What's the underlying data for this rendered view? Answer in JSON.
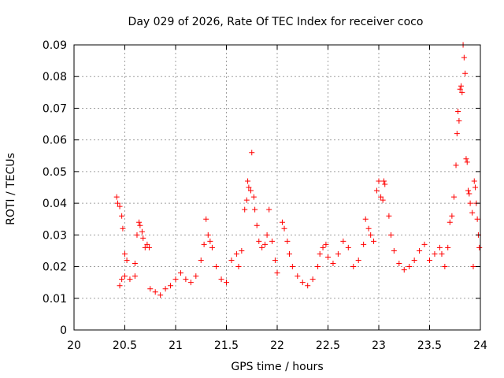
{
  "chart_data": {
    "type": "scatter",
    "title": "Day 029 of 2026, Rate Of TEC Index for receiver coco",
    "xlabel": "GPS time / hours",
    "ylabel": "ROTI / TECUs",
    "xlim": [
      20,
      24
    ],
    "ylim": [
      0,
      0.09
    ],
    "x_ticks": [
      20,
      20.5,
      21,
      21.5,
      22,
      22.5,
      23,
      23.5,
      24
    ],
    "x_tick_labels": [
      "20",
      "20.5",
      "21",
      "21.5",
      "22",
      "22.5",
      "23",
      "23.5",
      "24"
    ],
    "y_ticks": [
      0,
      0.01,
      0.02,
      0.03,
      0.04,
      0.05,
      0.06,
      0.07,
      0.08,
      0.09
    ],
    "y_tick_labels": [
      "0",
      "0.01",
      "0.02",
      "0.03",
      "0.04",
      "0.05",
      "0.06",
      "0.07",
      "0.08",
      "0.09"
    ],
    "grid": true,
    "marker": "+",
    "series": [
      {
        "name": "ROTI",
        "color": "#ff0000",
        "points": [
          [
            20.42,
            0.042
          ],
          [
            20.43,
            0.04
          ],
          [
            20.45,
            0.039
          ],
          [
            20.47,
            0.036
          ],
          [
            20.48,
            0.032
          ],
          [
            20.5,
            0.024
          ],
          [
            20.52,
            0.022
          ],
          [
            20.45,
            0.014
          ],
          [
            20.47,
            0.016
          ],
          [
            20.5,
            0.017
          ],
          [
            20.55,
            0.016
          ],
          [
            20.6,
            0.017
          ],
          [
            20.62,
            0.03
          ],
          [
            20.64,
            0.034
          ],
          [
            20.65,
            0.033
          ],
          [
            20.67,
            0.031
          ],
          [
            20.68,
            0.029
          ],
          [
            20.7,
            0.026
          ],
          [
            20.72,
            0.027
          ],
          [
            20.74,
            0.026
          ],
          [
            20.6,
            0.021
          ],
          [
            20.75,
            0.013
          ],
          [
            20.8,
            0.012
          ],
          [
            20.85,
            0.011
          ],
          [
            20.9,
            0.013
          ],
          [
            20.95,
            0.014
          ],
          [
            21.0,
            0.016
          ],
          [
            21.05,
            0.018
          ],
          [
            21.1,
            0.016
          ],
          [
            21.15,
            0.015
          ],
          [
            21.2,
            0.017
          ],
          [
            21.25,
            0.022
          ],
          [
            21.28,
            0.027
          ],
          [
            21.3,
            0.035
          ],
          [
            21.32,
            0.03
          ],
          [
            21.34,
            0.028
          ],
          [
            21.36,
            0.026
          ],
          [
            21.4,
            0.02
          ],
          [
            21.45,
            0.016
          ],
          [
            21.5,
            0.015
          ],
          [
            21.55,
            0.022
          ],
          [
            21.6,
            0.024
          ],
          [
            21.62,
            0.02
          ],
          [
            21.65,
            0.025
          ],
          [
            21.68,
            0.038
          ],
          [
            21.7,
            0.041
          ],
          [
            21.71,
            0.047
          ],
          [
            21.72,
            0.045
          ],
          [
            21.74,
            0.044
          ],
          [
            21.75,
            0.056
          ],
          [
            21.77,
            0.042
          ],
          [
            21.78,
            0.038
          ],
          [
            21.8,
            0.033
          ],
          [
            21.82,
            0.028
          ],
          [
            21.85,
            0.026
          ],
          [
            21.88,
            0.027
          ],
          [
            21.9,
            0.03
          ],
          [
            21.92,
            0.038
          ],
          [
            21.95,
            0.028
          ],
          [
            21.98,
            0.022
          ],
          [
            22.0,
            0.018
          ],
          [
            22.05,
            0.034
          ],
          [
            22.07,
            0.032
          ],
          [
            22.1,
            0.028
          ],
          [
            22.12,
            0.024
          ],
          [
            22.15,
            0.02
          ],
          [
            22.2,
            0.017
          ],
          [
            22.25,
            0.015
          ],
          [
            22.3,
            0.014
          ],
          [
            22.35,
            0.016
          ],
          [
            22.4,
            0.02
          ],
          [
            22.42,
            0.024
          ],
          [
            22.45,
            0.026
          ],
          [
            22.48,
            0.027
          ],
          [
            22.5,
            0.023
          ],
          [
            22.55,
            0.021
          ],
          [
            22.6,
            0.024
          ],
          [
            22.65,
            0.028
          ],
          [
            22.7,
            0.026
          ],
          [
            22.75,
            0.02
          ],
          [
            22.8,
            0.022
          ],
          [
            22.85,
            0.027
          ],
          [
            22.87,
            0.035
          ],
          [
            22.9,
            0.032
          ],
          [
            22.92,
            0.03
          ],
          [
            22.95,
            0.028
          ],
          [
            22.98,
            0.044
          ],
          [
            23.0,
            0.047
          ],
          [
            23.02,
            0.042
          ],
          [
            23.04,
            0.041
          ],
          [
            23.05,
            0.047
          ],
          [
            23.06,
            0.046
          ],
          [
            23.1,
            0.036
          ],
          [
            23.12,
            0.03
          ],
          [
            23.15,
            0.025
          ],
          [
            23.2,
            0.021
          ],
          [
            23.25,
            0.019
          ],
          [
            23.3,
            0.02
          ],
          [
            23.35,
            0.022
          ],
          [
            23.4,
            0.025
          ],
          [
            23.45,
            0.027
          ],
          [
            23.5,
            0.022
          ],
          [
            23.55,
            0.024
          ],
          [
            23.6,
            0.026
          ],
          [
            23.62,
            0.024
          ],
          [
            23.65,
            0.02
          ],
          [
            23.68,
            0.026
          ],
          [
            23.7,
            0.034
          ],
          [
            23.72,
            0.036
          ],
          [
            23.74,
            0.042
          ],
          [
            23.76,
            0.052
          ],
          [
            23.77,
            0.062
          ],
          [
            23.78,
            0.069
          ],
          [
            23.79,
            0.066
          ],
          [
            23.8,
            0.076
          ],
          [
            23.81,
            0.077
          ],
          [
            23.82,
            0.075
          ],
          [
            23.83,
            0.09
          ],
          [
            23.84,
            0.086
          ],
          [
            23.85,
            0.081
          ],
          [
            23.86,
            0.054
          ],
          [
            23.87,
            0.053
          ],
          [
            23.88,
            0.044
          ],
          [
            23.89,
            0.043
          ],
          [
            23.9,
            0.04
          ],
          [
            23.92,
            0.037
          ],
          [
            23.94,
            0.047
          ],
          [
            23.95,
            0.045
          ],
          [
            23.96,
            0.04
          ],
          [
            23.97,
            0.035
          ],
          [
            23.98,
            0.03
          ],
          [
            23.99,
            0.026
          ],
          [
            23.93,
            0.02
          ]
        ]
      }
    ]
  }
}
